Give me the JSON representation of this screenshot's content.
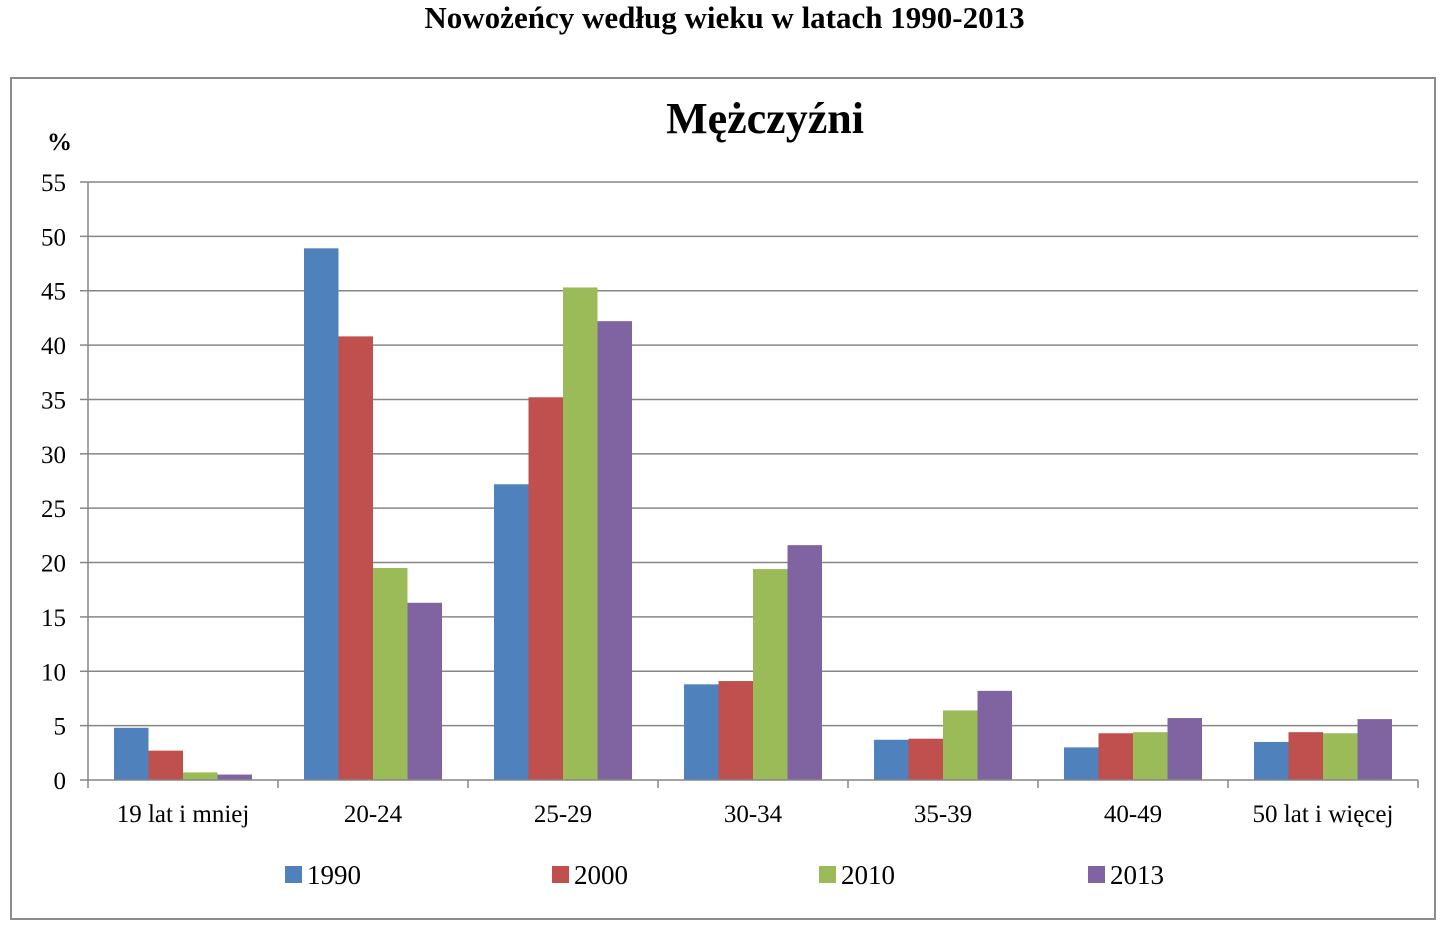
{
  "page_title": "Nowożeńcy według wieku w latach 1990-2013",
  "chart_data": {
    "type": "bar",
    "title": "Mężczyźni",
    "ylabel": "%",
    "xlabel": "",
    "ylim": [
      0,
      55
    ],
    "yticks": [
      0,
      5,
      10,
      15,
      20,
      25,
      30,
      35,
      40,
      45,
      50,
      55
    ],
    "grid": true,
    "legend_position": "bottom",
    "categories": [
      "19 lat i mniej",
      "20-24",
      "25-29",
      "30-34",
      "35-39",
      "40-49",
      "50 lat i więcej"
    ],
    "series": [
      {
        "name": "1990",
        "color": "#4f81bd",
        "values": [
          4.8,
          48.9,
          27.2,
          8.8,
          3.7,
          3.0,
          3.5
        ]
      },
      {
        "name": "2000",
        "color": "#c0504d",
        "values": [
          2.7,
          40.8,
          35.2,
          9.1,
          3.8,
          4.3,
          4.4
        ]
      },
      {
        "name": "2010",
        "color": "#9bbb59",
        "values": [
          0.7,
          19.5,
          45.3,
          19.4,
          6.4,
          4.4,
          4.3
        ]
      },
      {
        "name": "2013",
        "color": "#8064a2",
        "values": [
          0.5,
          16.3,
          42.2,
          21.6,
          8.2,
          5.7,
          5.6
        ]
      }
    ]
  }
}
